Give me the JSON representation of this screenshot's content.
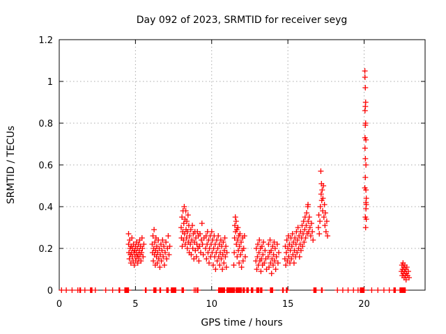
{
  "chart_data": {
    "type": "scatter",
    "title": "Day 092 of 2023, SRMTID for receiver seyg",
    "xlabel": "GPS time / hours",
    "ylabel": "SRMTID / TECUs",
    "xlim": [
      0,
      24
    ],
    "ylim": [
      0,
      1.2
    ],
    "xtick_values": [
      0,
      5,
      10,
      15,
      20
    ],
    "xtick_labels": [
      "0",
      "5",
      "10",
      "15",
      "20"
    ],
    "ytick_values": [
      0,
      0.2,
      0.4,
      0.6,
      0.8,
      1.0,
      1.2
    ],
    "ytick_labels": [
      "0",
      "0.2",
      "0.4",
      "0.6",
      "0.8",
      "1",
      "1.2"
    ],
    "grid": "dashed",
    "grid_color": "#a8a8a8",
    "axis_color": "#000000",
    "marker": "+",
    "marker_color": "#ff0000",
    "points": [
      [
        4.55,
        0.27
      ],
      [
        4.55,
        0.22
      ],
      [
        4.57,
        0.18
      ],
      [
        4.6,
        0.15
      ],
      [
        4.62,
        0.24
      ],
      [
        4.65,
        0.2
      ],
      [
        4.67,
        0.17
      ],
      [
        4.7,
        0.13
      ],
      [
        4.72,
        0.21
      ],
      [
        4.75,
        0.18
      ],
      [
        4.77,
        0.25
      ],
      [
        4.8,
        0.16
      ],
      [
        4.82,
        0.2
      ],
      [
        4.85,
        0.14
      ],
      [
        4.87,
        0.22
      ],
      [
        4.9,
        0.18
      ],
      [
        4.92,
        0.12
      ],
      [
        4.95,
        0.19
      ],
      [
        4.97,
        0.16
      ],
      [
        5.0,
        0.21
      ],
      [
        5.02,
        0.14
      ],
      [
        5.05,
        0.18
      ],
      [
        5.07,
        0.23
      ],
      [
        5.1,
        0.16
      ],
      [
        5.12,
        0.2
      ],
      [
        5.15,
        0.13
      ],
      [
        5.17,
        0.17
      ],
      [
        5.2,
        0.22
      ],
      [
        5.22,
        0.15
      ],
      [
        5.25,
        0.19
      ],
      [
        5.28,
        0.24
      ],
      [
        5.3,
        0.17
      ],
      [
        5.33,
        0.21
      ],
      [
        5.36,
        0.14
      ],
      [
        5.4,
        0.18
      ],
      [
        5.43,
        0.25
      ],
      [
        5.46,
        0.2
      ],
      [
        5.5,
        0.16
      ],
      [
        5.55,
        0.22
      ],
      [
        6.1,
        0.22
      ],
      [
        6.12,
        0.18
      ],
      [
        6.15,
        0.26
      ],
      [
        6.17,
        0.14
      ],
      [
        6.2,
        0.2
      ],
      [
        6.22,
        0.29
      ],
      [
        6.25,
        0.17
      ],
      [
        6.27,
        0.23
      ],
      [
        6.3,
        0.12
      ],
      [
        6.32,
        0.19
      ],
      [
        6.35,
        0.25
      ],
      [
        6.38,
        0.16
      ],
      [
        6.4,
        0.21
      ],
      [
        6.43,
        0.13
      ],
      [
        6.46,
        0.18
      ],
      [
        6.5,
        0.24
      ],
      [
        6.53,
        0.15
      ],
      [
        6.56,
        0.2
      ],
      [
        6.6,
        0.11
      ],
      [
        6.63,
        0.17
      ],
      [
        6.67,
        0.22
      ],
      [
        6.7,
        0.14
      ],
      [
        6.74,
        0.19
      ],
      [
        6.78,
        0.24
      ],
      [
        6.82,
        0.16
      ],
      [
        6.86,
        0.21
      ],
      [
        6.9,
        0.12
      ],
      [
        6.95,
        0.18
      ],
      [
        7.0,
        0.23
      ],
      [
        7.05,
        0.15
      ],
      [
        7.1,
        0.2
      ],
      [
        7.15,
        0.26
      ],
      [
        7.2,
        0.17
      ],
      [
        7.25,
        0.21
      ],
      [
        8.0,
        0.3
      ],
      [
        8.02,
        0.25
      ],
      [
        8.05,
        0.35
      ],
      [
        8.07,
        0.21
      ],
      [
        8.1,
        0.28
      ],
      [
        8.12,
        0.38
      ],
      [
        8.15,
        0.24
      ],
      [
        8.17,
        0.32
      ],
      [
        8.2,
        0.4
      ],
      [
        8.22,
        0.27
      ],
      [
        8.25,
        0.34
      ],
      [
        8.27,
        0.22
      ],
      [
        8.3,
        0.38
      ],
      [
        8.32,
        0.29
      ],
      [
        8.35,
        0.25
      ],
      [
        8.37,
        0.33
      ],
      [
        8.4,
        0.2
      ],
      [
        8.42,
        0.28
      ],
      [
        8.45,
        0.36
      ],
      [
        8.47,
        0.23
      ],
      [
        8.5,
        0.31
      ],
      [
        8.53,
        0.18
      ],
      [
        8.56,
        0.26
      ],
      [
        8.6,
        0.22
      ],
      [
        8.63,
        0.29
      ],
      [
        8.66,
        0.17
      ],
      [
        8.7,
        0.24
      ],
      [
        8.73,
        0.31
      ],
      [
        8.76,
        0.2
      ],
      [
        8.8,
        0.27
      ],
      [
        8.83,
        0.15
      ],
      [
        8.86,
        0.23
      ],
      [
        8.9,
        0.28
      ],
      [
        8.93,
        0.19
      ],
      [
        8.96,
        0.25
      ],
      [
        9.0,
        0.16
      ],
      [
        9.03,
        0.22
      ],
      [
        9.06,
        0.28
      ],
      [
        9.1,
        0.2
      ],
      [
        9.13,
        0.26
      ],
      [
        9.16,
        0.14
      ],
      [
        9.2,
        0.21
      ],
      [
        9.24,
        0.27
      ],
      [
        9.28,
        0.18
      ],
      [
        9.32,
        0.24
      ],
      [
        9.36,
        0.32
      ],
      [
        9.4,
        0.22
      ],
      [
        9.45,
        0.17
      ],
      [
        9.5,
        0.25
      ],
      [
        9.6,
        0.2
      ],
      [
        9.63,
        0.26
      ],
      [
        9.66,
        0.15
      ],
      [
        9.7,
        0.22
      ],
      [
        9.73,
        0.28
      ],
      [
        9.76,
        0.18
      ],
      [
        9.8,
        0.24
      ],
      [
        9.83,
        0.13
      ],
      [
        9.86,
        0.2
      ],
      [
        9.9,
        0.26
      ],
      [
        9.93,
        0.16
      ],
      [
        9.96,
        0.22
      ],
      [
        10.0,
        0.28
      ],
      [
        10.03,
        0.18
      ],
      [
        10.06,
        0.24
      ],
      [
        10.1,
        0.12
      ],
      [
        10.13,
        0.2
      ],
      [
        10.16,
        0.26
      ],
      [
        10.2,
        0.16
      ],
      [
        10.23,
        0.22
      ],
      [
        10.26,
        0.1
      ],
      [
        10.3,
        0.18
      ],
      [
        10.33,
        0.24
      ],
      [
        10.36,
        0.14
      ],
      [
        10.4,
        0.2
      ],
      [
        10.43,
        0.26
      ],
      [
        10.46,
        0.16
      ],
      [
        10.5,
        0.22
      ],
      [
        10.53,
        0.12
      ],
      [
        10.56,
        0.18
      ],
      [
        10.6,
        0.24
      ],
      [
        10.63,
        0.15
      ],
      [
        10.66,
        0.21
      ],
      [
        10.7,
        0.1
      ],
      [
        10.73,
        0.17
      ],
      [
        10.76,
        0.23
      ],
      [
        10.8,
        0.13
      ],
      [
        10.83,
        0.19
      ],
      [
        10.86,
        0.25
      ],
      [
        10.9,
        0.16
      ],
      [
        10.93,
        0.21
      ],
      [
        10.96,
        0.11
      ],
      [
        11.0,
        0.18
      ],
      [
        11.45,
        0.12
      ],
      [
        11.48,
        0.18
      ],
      [
        11.5,
        0.25
      ],
      [
        11.52,
        0.31
      ],
      [
        11.55,
        0.35
      ],
      [
        11.57,
        0.28
      ],
      [
        11.6,
        0.33
      ],
      [
        11.62,
        0.22
      ],
      [
        11.65,
        0.29
      ],
      [
        11.67,
        0.16
      ],
      [
        11.7,
        0.24
      ],
      [
        11.72,
        0.3
      ],
      [
        11.75,
        0.19
      ],
      [
        11.78,
        0.26
      ],
      [
        11.8,
        0.13
      ],
      [
        11.83,
        0.21
      ],
      [
        11.86,
        0.27
      ],
      [
        11.9,
        0.17
      ],
      [
        11.93,
        0.23
      ],
      [
        11.96,
        0.11
      ],
      [
        12.0,
        0.19
      ],
      [
        12.03,
        0.25
      ],
      [
        12.06,
        0.14
      ],
      [
        12.1,
        0.2
      ],
      [
        12.15,
        0.26
      ],
      [
        12.2,
        0.16
      ],
      [
        12.9,
        0.14
      ],
      [
        12.93,
        0.2
      ],
      [
        12.96,
        0.1
      ],
      [
        13.0,
        0.16
      ],
      [
        13.03,
        0.22
      ],
      [
        13.06,
        0.12
      ],
      [
        13.1,
        0.18
      ],
      [
        13.13,
        0.24
      ],
      [
        13.16,
        0.14
      ],
      [
        13.2,
        0.2
      ],
      [
        13.23,
        0.09
      ],
      [
        13.26,
        0.15
      ],
      [
        13.3,
        0.21
      ],
      [
        13.33,
        0.12
      ],
      [
        13.36,
        0.17
      ],
      [
        13.4,
        0.23
      ],
      [
        13.45,
        0.13
      ],
      [
        13.5,
        0.19
      ],
      [
        13.55,
        0.15
      ],
      [
        13.6,
        0.1
      ],
      [
        13.7,
        0.16
      ],
      [
        13.73,
        0.22
      ],
      [
        13.76,
        0.11
      ],
      [
        13.8,
        0.18
      ],
      [
        13.83,
        0.24
      ],
      [
        13.86,
        0.13
      ],
      [
        13.9,
        0.19
      ],
      [
        13.93,
        0.08
      ],
      [
        13.96,
        0.15
      ],
      [
        14.0,
        0.21
      ],
      [
        14.03,
        0.12
      ],
      [
        14.06,
        0.17
      ],
      [
        14.1,
        0.23
      ],
      [
        14.13,
        0.14
      ],
      [
        14.16,
        0.2
      ],
      [
        14.2,
        0.1
      ],
      [
        14.25,
        0.16
      ],
      [
        14.3,
        0.22
      ],
      [
        14.35,
        0.13
      ],
      [
        14.4,
        0.18
      ],
      [
        14.8,
        0.15
      ],
      [
        14.83,
        0.21
      ],
      [
        14.86,
        0.12
      ],
      [
        14.9,
        0.18
      ],
      [
        14.93,
        0.24
      ],
      [
        14.96,
        0.14
      ],
      [
        15.0,
        0.2
      ],
      [
        15.03,
        0.26
      ],
      [
        15.06,
        0.16
      ],
      [
        15.1,
        0.22
      ],
      [
        15.13,
        0.13
      ],
      [
        15.16,
        0.19
      ],
      [
        15.2,
        0.25
      ],
      [
        15.23,
        0.15
      ],
      [
        15.26,
        0.21
      ],
      [
        15.3,
        0.27
      ],
      [
        15.33,
        0.17
      ],
      [
        15.36,
        0.23
      ],
      [
        15.4,
        0.13
      ],
      [
        15.43,
        0.19
      ],
      [
        15.46,
        0.25
      ],
      [
        15.5,
        0.16
      ],
      [
        15.53,
        0.22
      ],
      [
        15.56,
        0.28
      ],
      [
        15.6,
        0.18
      ],
      [
        15.63,
        0.24
      ],
      [
        15.66,
        0.3
      ],
      [
        15.7,
        0.2
      ],
      [
        15.73,
        0.26
      ],
      [
        15.76,
        0.16
      ],
      [
        15.8,
        0.22
      ],
      [
        15.83,
        0.28
      ],
      [
        15.86,
        0.19
      ],
      [
        15.9,
        0.25
      ],
      [
        15.93,
        0.31
      ],
      [
        15.96,
        0.21
      ],
      [
        16.0,
        0.27
      ],
      [
        16.03,
        0.33
      ],
      [
        16.06,
        0.23
      ],
      [
        16.1,
        0.29
      ],
      [
        16.13,
        0.35
      ],
      [
        16.16,
        0.25
      ],
      [
        16.2,
        0.31
      ],
      [
        16.23,
        0.37
      ],
      [
        16.26,
        0.27
      ],
      [
        16.3,
        0.4
      ],
      [
        16.32,
        0.41
      ],
      [
        16.33,
        0.33
      ],
      [
        16.36,
        0.28
      ],
      [
        16.4,
        0.35
      ],
      [
        16.45,
        0.3
      ],
      [
        16.5,
        0.26
      ],
      [
        16.55,
        0.32
      ],
      [
        16.6,
        0.28
      ],
      [
        16.65,
        0.24
      ],
      [
        17.0,
        0.3
      ],
      [
        17.03,
        0.36
      ],
      [
        17.06,
        0.27
      ],
      [
        17.1,
        0.33
      ],
      [
        17.13,
        0.4
      ],
      [
        17.16,
        0.57
      ],
      [
        17.18,
        0.46
      ],
      [
        17.2,
        0.51
      ],
      [
        17.22,
        0.43
      ],
      [
        17.25,
        0.48
      ],
      [
        17.28,
        0.38
      ],
      [
        17.3,
        0.44
      ],
      [
        17.33,
        0.5
      ],
      [
        17.36,
        0.35
      ],
      [
        17.4,
        0.41
      ],
      [
        17.43,
        0.31
      ],
      [
        17.46,
        0.37
      ],
      [
        17.5,
        0.28
      ],
      [
        17.55,
        0.33
      ],
      [
        17.6,
        0.26
      ],
      [
        20.05,
        1.05
      ],
      [
        20.06,
        1.02
      ],
      [
        20.08,
        0.97
      ],
      [
        20.1,
        0.9
      ],
      [
        20.08,
        0.88
      ],
      [
        20.06,
        0.86
      ],
      [
        20.1,
        0.8
      ],
      [
        20.08,
        0.79
      ],
      [
        20.06,
        0.73
      ],
      [
        20.12,
        0.72
      ],
      [
        20.06,
        0.68
      ],
      [
        20.08,
        0.63
      ],
      [
        20.12,
        0.6
      ],
      [
        20.08,
        0.54
      ],
      [
        20.05,
        0.49
      ],
      [
        20.12,
        0.48
      ],
      [
        20.14,
        0.44
      ],
      [
        20.12,
        0.42
      ],
      [
        20.14,
        0.41
      ],
      [
        20.12,
        0.39
      ],
      [
        20.08,
        0.35
      ],
      [
        20.14,
        0.34
      ],
      [
        20.1,
        0.3
      ],
      [
        22.45,
        0.09
      ],
      [
        22.48,
        0.12
      ],
      [
        22.5,
        0.07
      ],
      [
        22.52,
        0.1
      ],
      [
        22.55,
        0.13
      ],
      [
        22.57,
        0.08
      ],
      [
        22.6,
        0.11
      ],
      [
        22.62,
        0.06
      ],
      [
        22.65,
        0.09
      ],
      [
        22.67,
        0.12
      ],
      [
        22.7,
        0.07
      ],
      [
        22.72,
        0.1
      ],
      [
        22.75,
        0.05
      ],
      [
        22.78,
        0.08
      ],
      [
        22.8,
        0.11
      ],
      [
        22.85,
        0.07
      ],
      [
        22.9,
        0.09
      ],
      [
        22.95,
        0.06
      ]
    ],
    "zero_line_xs": [
      0.15,
      0.46,
      0.84,
      1.22,
      1.35,
      1.4,
      1.68,
      2.05,
      2.1,
      2.15,
      2.37,
      3.05,
      3.5,
      3.92,
      3.97,
      4.3,
      4.35,
      4.4,
      4.45,
      4.5,
      4.55,
      5.65,
      5.7,
      6.2,
      6.25,
      6.3,
      6.35,
      6.6,
      6.65,
      7.05,
      7.1,
      7.15,
      7.35,
      7.4,
      7.45,
      7.5,
      7.55,
      7.6,
      7.65,
      8.05,
      8.1,
      8.15,
      8.85,
      8.95,
      9.05,
      9.1,
      10.45,
      10.5,
      10.55,
      10.6,
      10.65,
      10.7,
      10.75,
      10.8,
      10.85,
      11.0,
      11.05,
      11.1,
      11.15,
      11.2,
      11.25,
      11.3,
      11.35,
      11.4,
      11.45,
      11.5,
      11.6,
      11.65,
      11.7,
      11.75,
      11.8,
      11.85,
      11.9,
      11.95,
      12.05,
      12.1,
      12.15,
      12.3,
      12.35,
      12.4,
      12.6,
      12.65,
      12.7,
      12.95,
      13.0,
      13.05,
      13.1,
      13.2,
      13.25,
      13.3,
      13.85,
      13.9,
      13.95,
      14.0,
      14.65,
      14.7,
      14.9,
      14.95,
      16.7,
      16.75,
      16.8,
      16.85,
      17.2,
      17.25,
      18.25,
      18.6,
      18.95,
      19.3,
      19.6,
      19.75,
      19.8,
      19.85,
      19.9,
      19.95,
      20.0,
      20.5,
      20.9,
      21.3,
      21.65,
      21.95,
      22.0,
      22.05,
      22.35,
      22.4,
      22.45,
      22.5,
      22.55,
      22.6,
      22.65,
      22.7
    ]
  }
}
